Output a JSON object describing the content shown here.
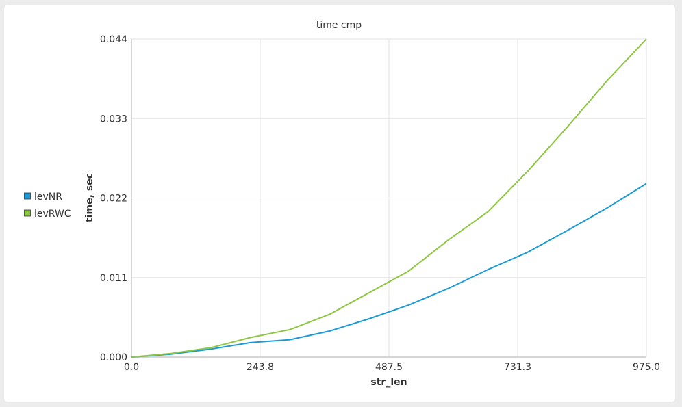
{
  "chart_data": {
    "type": "line",
    "title": "time cmp",
    "xlabel": "str_len",
    "ylabel": "time, sec",
    "xlim": [
      0,
      975
    ],
    "ylim": [
      0,
      0.044
    ],
    "x_ticks": [
      "0.0",
      "243.8",
      "487.5",
      "731.3",
      "975.0"
    ],
    "y_ticks": [
      "0.000",
      "0.011",
      "0.022",
      "0.033",
      "0.044"
    ],
    "x": [
      0,
      75,
      150,
      225,
      300,
      375,
      450,
      525,
      600,
      675,
      750,
      825,
      900,
      975
    ],
    "series": [
      {
        "name": "levNR",
        "color": "#1a9bd7",
        "values": [
          0,
          0.0004,
          0.0011,
          0.002,
          0.0024,
          0.0036,
          0.0053,
          0.0072,
          0.0095,
          0.0121,
          0.0145,
          0.0175,
          0.0206,
          0.024
        ]
      },
      {
        "name": "levRWC",
        "color": "#8dc63f",
        "values": [
          0,
          0.0005,
          0.0013,
          0.0027,
          0.0038,
          0.0059,
          0.0089,
          0.0119,
          0.0162,
          0.0201,
          0.0257,
          0.0318,
          0.0382,
          0.044
        ]
      }
    ],
    "grid": true,
    "legend_position": "left"
  }
}
